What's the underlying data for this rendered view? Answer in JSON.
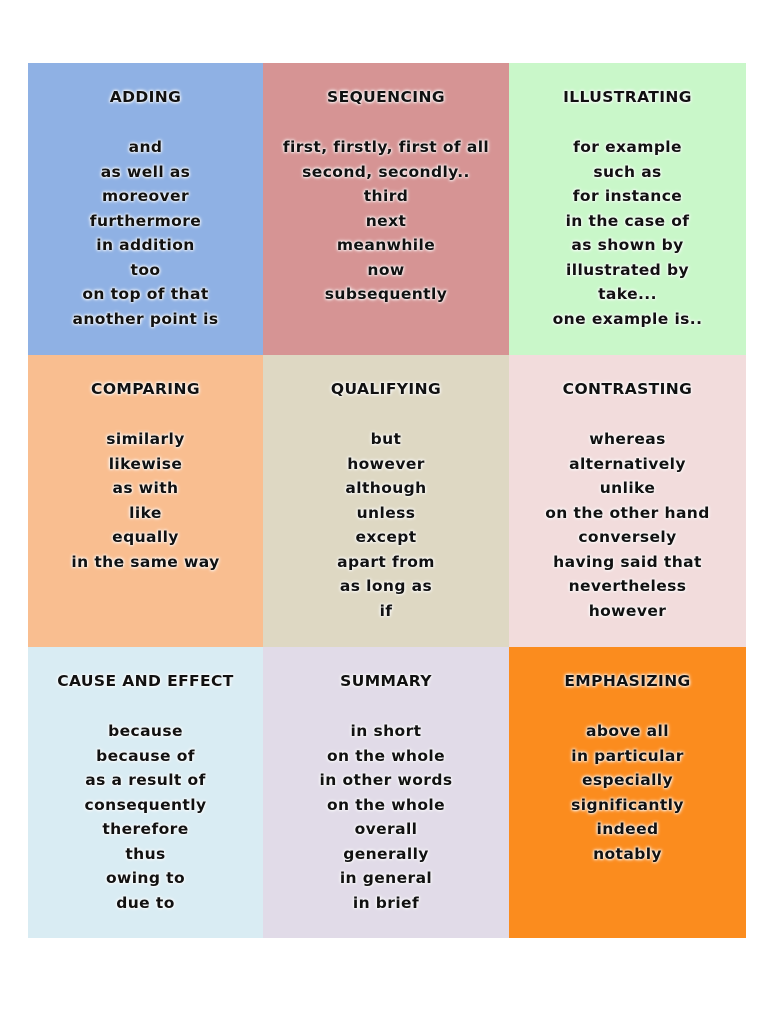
{
  "categories": [
    {
      "heading": "ADDING",
      "color": "#8fb1e4",
      "items": [
        "and",
        "as well as",
        "moreover",
        "furthermore",
        "in addition",
        "too",
        "on top of that",
        "another point is"
      ]
    },
    {
      "heading": "SEQUENCING",
      "color": "#d69494",
      "items": [
        "first, firstly, first of all",
        "second, secondly..",
        "third",
        "next",
        "meanwhile",
        "now",
        "subsequently"
      ]
    },
    {
      "heading": "ILLUSTRATING",
      "color": "#c9f7c9",
      "items": [
        "for example",
        "such as",
        "for instance",
        "in the case of",
        "as shown by",
        "illustrated by",
        "take...",
        "one example is.."
      ]
    },
    {
      "heading": "COMPARING",
      "color": "#f9be90",
      "items": [
        "similarly",
        "likewise",
        "as with",
        "like",
        "equally",
        "in the same way"
      ]
    },
    {
      "heading": "QUALIFYING",
      "color": "#ded8c3",
      "items": [
        "but",
        "however",
        "although",
        "unless",
        "except",
        "apart from",
        "as long as",
        "if"
      ]
    },
    {
      "heading": "CONTRASTING",
      "color": "#f2dcdc",
      "items": [
        "whereas",
        "alternatively",
        "unlike",
        "on the other hand",
        "conversely",
        "having said that",
        "nevertheless",
        "however"
      ]
    },
    {
      "heading": "CAUSE AND EFFECT",
      "color": "#d9ecf3",
      "items": [
        "because",
        "because of",
        "as a result of",
        "consequently",
        "therefore",
        "thus",
        "owing to",
        "due to"
      ]
    },
    {
      "heading": "SUMMARY",
      "color": "#e1dbe8",
      "items": [
        "in short",
        "on the whole",
        "in other words",
        "on the whole",
        "overall",
        "generally",
        "in general",
        "in brief"
      ]
    },
    {
      "heading": "EMPHASIZING",
      "color": "#fb8c1e",
      "items": [
        "above all",
        "in particular",
        "especially",
        "significantly",
        "indeed",
        "notably"
      ]
    }
  ]
}
